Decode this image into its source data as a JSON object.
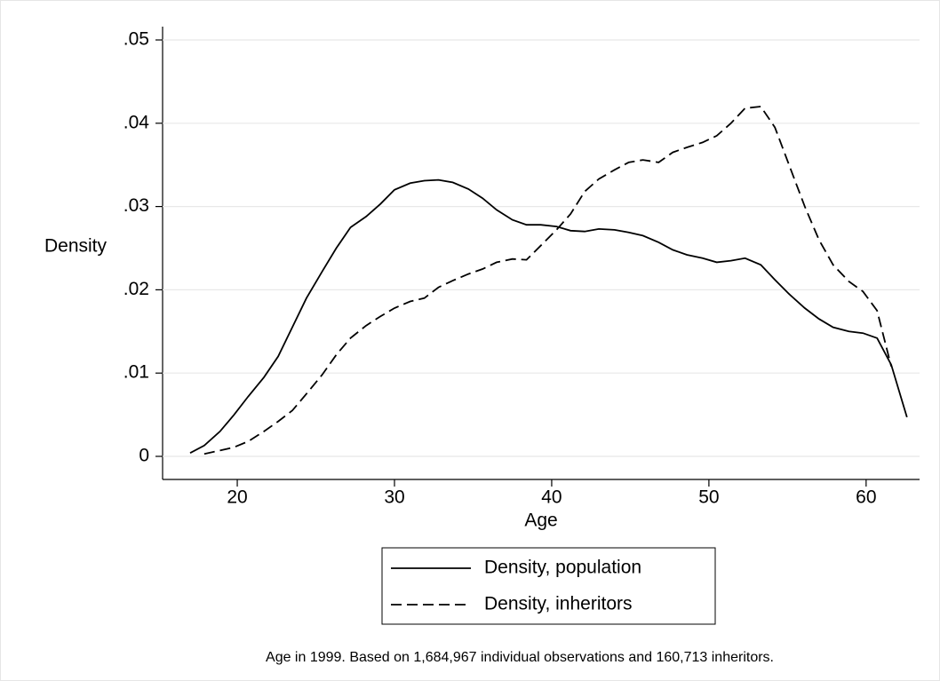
{
  "chart_data": {
    "type": "line",
    "x_label": "Age",
    "y_label": "Density",
    "note": "Age in 1999. Based on 1,684,967 individual observations and 160,713 inheritors.",
    "x": [
      17.0,
      17.9,
      18.9,
      19.8,
      20.7,
      21.7,
      22.6,
      23.5,
      24.4,
      25.4,
      26.3,
      27.2,
      28.2,
      29.1,
      30.0,
      31.0,
      31.9,
      32.8,
      33.7,
      34.7,
      35.6,
      36.5,
      37.5,
      38.4,
      39.3,
      40.3,
      41.2,
      42.1,
      43.0,
      44.0,
      44.9,
      45.8,
      46.8,
      47.7,
      48.6,
      49.6,
      50.5,
      51.4,
      52.3,
      53.3,
      54.2,
      55.1,
      56.1,
      57.0,
      57.9,
      58.9,
      59.8,
      60.7,
      61.6,
      62.6
    ],
    "series": [
      {
        "name": "Density, population",
        "color": "#000000",
        "dash": "solid",
        "values": [
          0.0004,
          0.0013,
          0.003,
          0.005,
          0.0072,
          0.0095,
          0.012,
          0.0155,
          0.019,
          0.0222,
          0.025,
          0.0275,
          0.0288,
          0.0303,
          0.032,
          0.0328,
          0.0331,
          0.0332,
          0.0329,
          0.0321,
          0.031,
          0.0296,
          0.0284,
          0.0278,
          0.0278,
          0.0276,
          0.0271,
          0.027,
          0.0273,
          0.0272,
          0.0269,
          0.0265,
          0.0257,
          0.0248,
          0.0242,
          0.0238,
          0.0233,
          0.0235,
          0.0238,
          0.023,
          0.0212,
          0.0195,
          0.0178,
          0.0165,
          0.0155,
          0.015,
          0.0148,
          0.0142,
          0.011,
          0.0047
        ]
      },
      {
        "name": "Density, inheritors",
        "color": "#000000",
        "dash": "dashed",
        "values": [
          null,
          0.0003,
          0.0007,
          0.0011,
          0.0018,
          0.003,
          0.0042,
          0.0055,
          0.0075,
          0.0098,
          0.0122,
          0.0142,
          0.0157,
          0.0168,
          0.0178,
          0.0186,
          0.019,
          0.0203,
          0.0211,
          0.0219,
          0.0225,
          0.0233,
          0.0237,
          0.0236,
          0.0253,
          0.0272,
          0.0291,
          0.0318,
          0.0333,
          0.0344,
          0.0353,
          0.0356,
          0.0353,
          0.0365,
          0.0371,
          0.0377,
          0.0385,
          0.04,
          0.0418,
          0.042,
          0.0395,
          0.035,
          0.03,
          0.026,
          0.023,
          0.021,
          0.0198,
          0.0175,
          0.0108,
          null
        ]
      }
    ],
    "xlim": [
      15.25,
      63.4
    ],
    "xticks": [
      20,
      30,
      40,
      50,
      60
    ],
    "ylim": [
      0,
      0.05
    ],
    "yticks": [
      0,
      {
        "value": 0.01,
        "label": ".01"
      },
      {
        "value": 0.02,
        "label": ".02"
      },
      {
        "value": 0.03,
        "label": ".03"
      },
      {
        "value": 0.04,
        "label": ".04"
      },
      {
        "value": 0.05,
        "label": ".05"
      }
    ],
    "grid": true,
    "legend": "bottom"
  }
}
